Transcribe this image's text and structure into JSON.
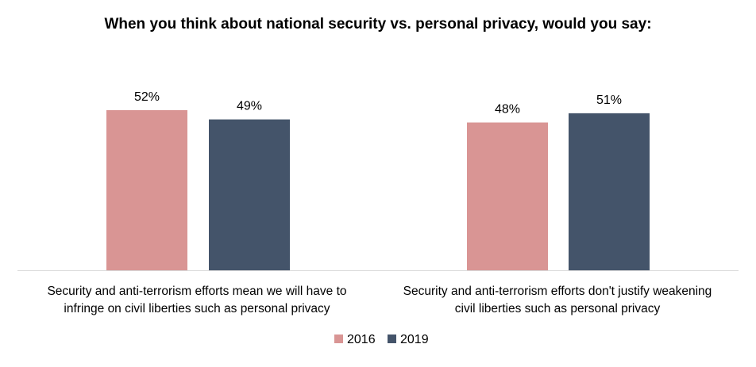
{
  "chart_data": {
    "type": "bar",
    "title": "When you think about national security vs. personal privacy, would you say:",
    "categories": [
      [
        "Security and anti-terrorism efforts mean we will have to",
        "infringe on civil liberties such as personal privacy"
      ],
      [
        "Security and anti-terrorism efforts don't justify weakening",
        "civil liberties such as personal privacy"
      ]
    ],
    "series": [
      {
        "name": "2016",
        "color": "#D99594",
        "values": [
          52,
          48
        ],
        "labels": [
          "52%",
          "48%"
        ]
      },
      {
        "name": "2019",
        "color": "#44546A",
        "values": [
          49,
          51
        ],
        "labels": [
          "49%",
          "51%"
        ]
      }
    ],
    "ylim": [
      0,
      60
    ],
    "grid": false,
    "legend_position": "bottom",
    "xlabel": "",
    "ylabel": ""
  }
}
